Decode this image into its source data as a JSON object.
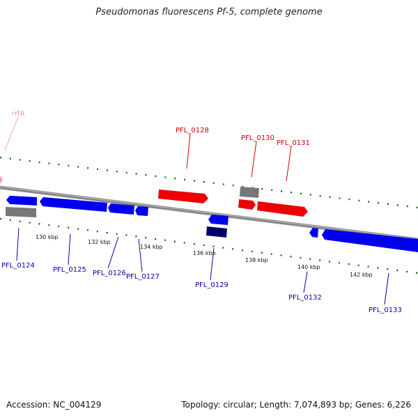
{
  "title": "Pseudomonas fluorescens Pf-5, complete genome",
  "accession": "Accession: NC_004129",
  "topology": "Topology: circular; Length: 7,074,893 bp; Genes: 6,226",
  "colors": {
    "forward_gene": "#ff0000",
    "reverse_gene": "#0000ff",
    "other_feature": "#808080",
    "dark_feature": "#000066",
    "rna": "#ff99cc",
    "backbone": "#888888",
    "ticks": "#006600",
    "forward_label": "#cc0000",
    "reverse_label": "#0000aa",
    "rna_label": "#ff88bb"
  },
  "axis": {
    "tick_labels": [
      "130 kbp",
      "132 kbp",
      "134 kbp",
      "136 kbp",
      "138 kbp",
      "140 kbp",
      "142 kbp"
    ]
  },
  "genes": {
    "forward": [
      {
        "label": "PFL_0128"
      },
      {
        "label": "PFL_0130"
      },
      {
        "label": "PFL_0131"
      }
    ],
    "reverse": [
      {
        "label": "PFL_0124"
      },
      {
        "label": "PFL_0125"
      },
      {
        "label": "PFL_0126"
      },
      {
        "label": "PFL_0127"
      },
      {
        "label": "PFL_0129"
      },
      {
        "label": "PFL_0132"
      },
      {
        "label": "PFL_0133"
      }
    ],
    "rna": [
      {
        "label": "rrfA"
      }
    ]
  }
}
